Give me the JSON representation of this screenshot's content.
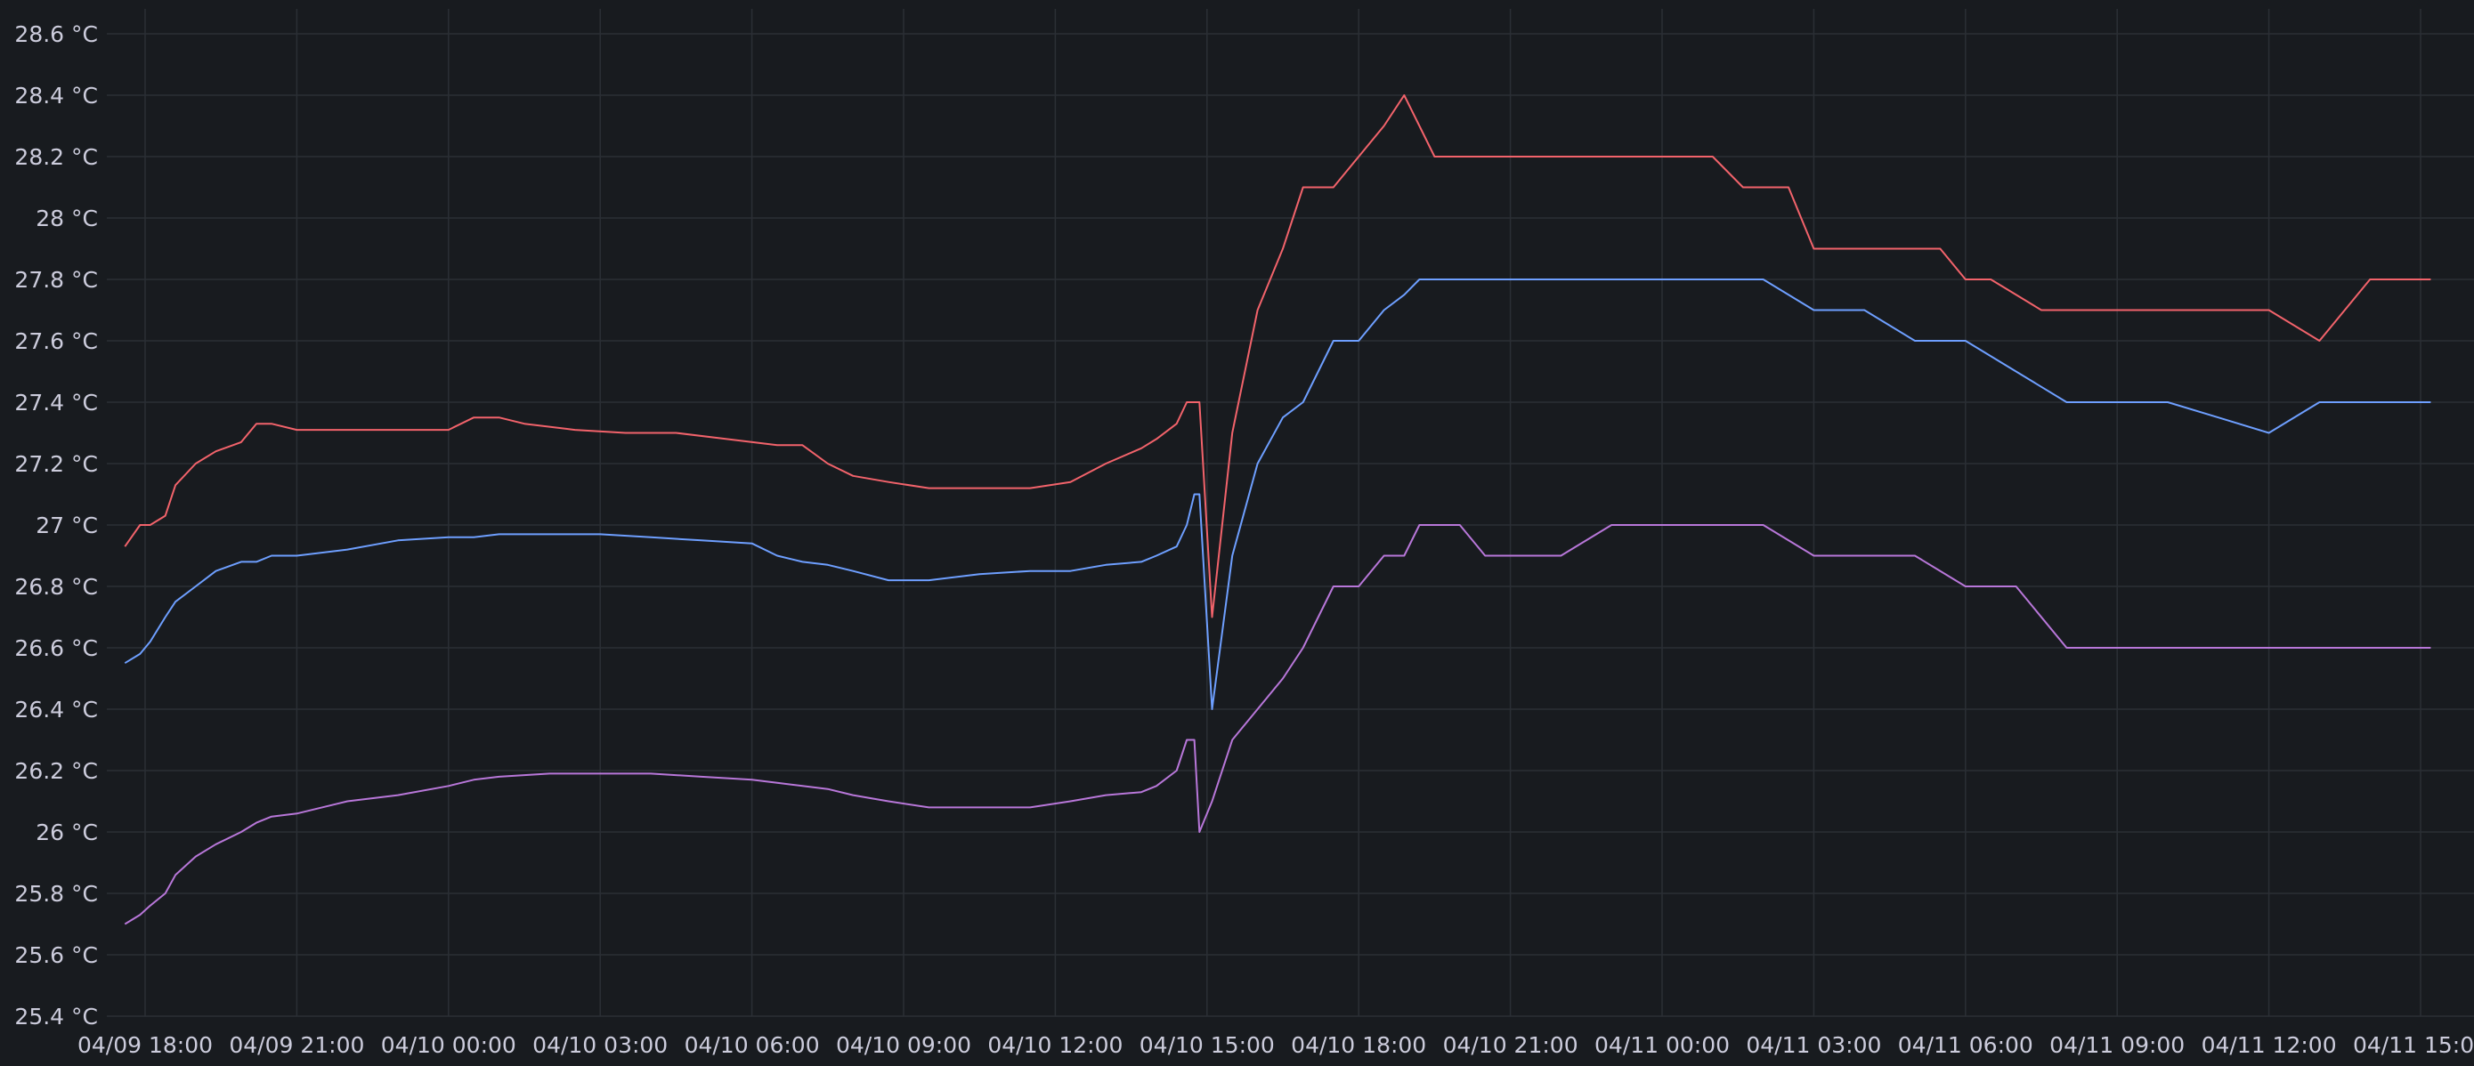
{
  "chart_data": {
    "type": "line",
    "title": "",
    "xlabel": "",
    "ylabel": "",
    "unit": "°C",
    "grid": true,
    "legend": "none",
    "ylim": [
      25.4,
      28.65
    ],
    "xlim": [
      "04/09 17:36",
      "04/11 15:12"
    ],
    "y_ticks": [
      "25.4 °C",
      "25.6 °C",
      "25.8 °C",
      "26 °C",
      "26.2 °C",
      "26.4 °C",
      "26.6 °C",
      "26.8 °C",
      "27 °C",
      "27.2 °C",
      "27.4 °C",
      "27.6 °C",
      "27.8 °C",
      "28 °C",
      "28.2 °C",
      "28.4 °C",
      "28.6 °C"
    ],
    "y_tick_values": [
      25.4,
      25.6,
      25.8,
      26.0,
      26.2,
      26.4,
      26.6,
      26.8,
      27.0,
      27.2,
      27.4,
      27.6,
      27.8,
      28.0,
      28.2,
      28.4,
      28.6
    ],
    "x_ticks": [
      "04/09 18:00",
      "04/09 21:00",
      "04/10 00:00",
      "04/10 03:00",
      "04/10 06:00",
      "04/10 09:00",
      "04/10 12:00",
      "04/10 15:00",
      "04/10 18:00",
      "04/10 21:00",
      "04/11 00:00",
      "04/11 03:00",
      "04/11 06:00",
      "04/11 09:00",
      "04/11 12:00",
      "04/11 15:00"
    ],
    "x_tick_values": [
      "04/09 18:00",
      "04/09 21:00",
      "04/10 00:00",
      "04/10 03:00",
      "04/10 06:00",
      "04/10 09:00",
      "04/10 12:00",
      "04/10 15:00",
      "04/10 18:00",
      "04/10 21:00",
      "04/11 00:00",
      "04/11 03:00",
      "04/11 06:00",
      "04/11 09:00",
      "04/11 12:00",
      "04/11 15:00"
    ],
    "series": [
      {
        "color": "#f2636b",
        "x": [
          "04/09 17:36",
          "04/09 17:54",
          "04/09 18:06",
          "04/09 18:24",
          "04/09 18:36",
          "04/09 19:00",
          "04/09 19:24",
          "04/09 19:54",
          "04/09 20:12",
          "04/09 20:30",
          "04/09 21:00",
          "04/09 22:00",
          "04/09 23:00",
          "04/10 00:00",
          "04/10 00:30",
          "04/10 01:00",
          "04/10 01:30",
          "04/10 02:30",
          "04/10 03:30",
          "04/10 04:30",
          "04/10 05:30",
          "04/10 06:30",
          "04/10 07:00",
          "04/10 07:30",
          "04/10 08:00",
          "04/10 08:42",
          "04/10 09:30",
          "04/10 10:30",
          "04/10 11:30",
          "04/10 12:18",
          "04/10 13:00",
          "04/10 13:42",
          "04/10 14:00",
          "04/10 14:24",
          "04/10 14:36",
          "04/10 14:45",
          "04/10 14:51",
          "04/10 15:06",
          "04/10 15:30",
          "04/10 16:00",
          "04/10 16:30",
          "04/10 16:54",
          "04/10 17:30",
          "04/10 18:00",
          "04/10 18:30",
          "04/10 18:54",
          "04/10 19:12",
          "04/10 19:30",
          "04/10 20:00",
          "04/10 21:00",
          "04/10 22:00",
          "04/10 23:00",
          "04/11 00:00",
          "04/11 01:00",
          "04/11 01:36",
          "04/11 02:00",
          "04/11 02:30",
          "04/11 03:00",
          "04/11 03:30",
          "04/11 04:30",
          "04/11 05:30",
          "04/11 06:00",
          "04/11 06:30",
          "04/11 07:30",
          "04/11 08:30",
          "04/11 09:30",
          "04/11 10:30",
          "04/11 11:30",
          "04/11 12:00",
          "04/11 13:00",
          "04/11 14:00",
          "04/11 15:12"
        ],
        "y": [
          26.93,
          27.0,
          27.0,
          27.03,
          27.13,
          27.2,
          27.24,
          27.27,
          27.33,
          27.33,
          27.31,
          27.31,
          27.31,
          27.31,
          27.35,
          27.35,
          27.33,
          27.31,
          27.3,
          27.3,
          27.28,
          27.26,
          27.26,
          27.2,
          27.16,
          27.14,
          27.12,
          27.12,
          27.12,
          27.14,
          27.2,
          27.25,
          27.28,
          27.33,
          27.4,
          27.4,
          27.4,
          26.7,
          27.3,
          27.7,
          27.9,
          28.1,
          28.1,
          28.2,
          28.3,
          28.4,
          28.3,
          28.2,
          28.2,
          28.2,
          28.2,
          28.2,
          28.2,
          28.2,
          28.1,
          28.1,
          28.1,
          27.9,
          27.9,
          27.9,
          27.9,
          27.8,
          27.8,
          27.7,
          27.7,
          27.7,
          27.7,
          27.7,
          27.7,
          27.6,
          27.8,
          27.8
        ]
      },
      {
        "color": "#6e9fff",
        "x": [
          "04/09 17:36",
          "04/09 17:54",
          "04/09 18:06",
          "04/09 18:24",
          "04/09 18:36",
          "04/09 19:00",
          "04/09 19:24",
          "04/09 19:54",
          "04/09 20:12",
          "04/09 20:30",
          "04/09 21:00",
          "04/09 22:00",
          "04/09 23:00",
          "04/10 00:00",
          "04/10 00:30",
          "04/10 01:00",
          "04/10 02:00",
          "04/10 03:00",
          "04/10 04:00",
          "04/10 05:00",
          "04/10 06:00",
          "04/10 06:30",
          "04/10 07:00",
          "04/10 07:30",
          "04/10 08:00",
          "04/10 08:42",
          "04/10 09:30",
          "04/10 10:30",
          "04/10 11:30",
          "04/10 12:18",
          "04/10 13:00",
          "04/10 13:42",
          "04/10 14:00",
          "04/10 14:24",
          "04/10 14:36",
          "04/10 14:45",
          "04/10 14:51",
          "04/10 15:06",
          "04/10 15:30",
          "04/10 16:00",
          "04/10 16:30",
          "04/10 16:54",
          "04/10 17:30",
          "04/10 18:00",
          "04/10 18:30",
          "04/10 18:54",
          "04/10 19:12",
          "04/10 19:30",
          "04/10 20:00",
          "04/10 21:00",
          "04/10 22:00",
          "04/10 23:00",
          "04/11 00:00",
          "04/11 01:00",
          "04/11 02:00",
          "04/11 03:00",
          "04/11 04:00",
          "04/11 05:00",
          "04/11 06:00",
          "04/11 07:00",
          "04/11 08:00",
          "04/11 09:00",
          "04/11 10:00",
          "04/11 11:00",
          "04/11 12:00",
          "04/11 13:00",
          "04/11 14:00",
          "04/11 15:12"
        ],
        "y": [
          26.55,
          26.58,
          26.62,
          26.7,
          26.75,
          26.8,
          26.85,
          26.88,
          26.88,
          26.9,
          26.9,
          26.92,
          26.95,
          26.96,
          26.96,
          26.97,
          26.97,
          26.97,
          26.96,
          26.95,
          26.94,
          26.9,
          26.88,
          26.87,
          26.85,
          26.82,
          26.82,
          26.84,
          26.85,
          26.85,
          26.87,
          26.88,
          26.9,
          26.93,
          27.0,
          27.1,
          27.1,
          26.4,
          26.9,
          27.2,
          27.35,
          27.4,
          27.6,
          27.6,
          27.7,
          27.75,
          27.8,
          27.8,
          27.8,
          27.8,
          27.8,
          27.8,
          27.8,
          27.8,
          27.8,
          27.7,
          27.7,
          27.6,
          27.6,
          27.5,
          27.4,
          27.4,
          27.4,
          27.35,
          27.3,
          27.4,
          27.4,
          27.4
        ]
      },
      {
        "color": "#b877d9",
        "x": [
          "04/09 17:36",
          "04/09 17:54",
          "04/09 18:06",
          "04/09 18:24",
          "04/09 18:36",
          "04/09 19:00",
          "04/09 19:24",
          "04/09 19:54",
          "04/09 20:12",
          "04/09 20:30",
          "04/09 21:00",
          "04/09 22:00",
          "04/09 23:00",
          "04/10 00:00",
          "04/10 00:30",
          "04/10 01:00",
          "04/10 02:00",
          "04/10 03:00",
          "04/10 04:00",
          "04/10 05:00",
          "04/10 06:00",
          "04/10 06:30",
          "04/10 07:00",
          "04/10 07:30",
          "04/10 08:00",
          "04/10 08:42",
          "04/10 09:30",
          "04/10 10:30",
          "04/10 11:30",
          "04/10 12:18",
          "04/10 13:00",
          "04/10 13:42",
          "04/10 14:00",
          "04/10 14:24",
          "04/10 14:36",
          "04/10 14:45",
          "04/10 14:51",
          "04/10 15:06",
          "04/10 15:30",
          "04/10 16:00",
          "04/10 16:30",
          "04/10 16:54",
          "04/10 17:30",
          "04/10 18:00",
          "04/10 18:30",
          "04/10 18:54",
          "04/10 19:12",
          "04/10 19:30",
          "04/10 20:00",
          "04/10 20:30",
          "04/10 21:00",
          "04/10 22:00",
          "04/10 23:00",
          "04/11 00:00",
          "04/11 01:00",
          "04/11 02:00",
          "04/11 03:00",
          "04/11 04:00",
          "04/11 05:00",
          "04/11 06:00",
          "04/11 07:00",
          "04/11 08:00",
          "04/11 09:00",
          "04/11 10:00",
          "04/11 11:00",
          "04/11 12:00",
          "04/11 13:00",
          "04/11 14:00",
          "04/11 15:12"
        ],
        "y": [
          25.7,
          25.73,
          25.76,
          25.8,
          25.86,
          25.92,
          25.96,
          26.0,
          26.03,
          26.05,
          26.06,
          26.1,
          26.12,
          26.15,
          26.17,
          26.18,
          26.19,
          26.19,
          26.19,
          26.18,
          26.17,
          26.16,
          26.15,
          26.14,
          26.12,
          26.1,
          26.08,
          26.08,
          26.08,
          26.1,
          26.12,
          26.13,
          26.15,
          26.2,
          26.3,
          26.3,
          26.0,
          26.1,
          26.3,
          26.4,
          26.5,
          26.6,
          26.8,
          26.8,
          26.9,
          26.9,
          27.0,
          27.0,
          27.0,
          26.9,
          26.9,
          26.9,
          27.0,
          27.0,
          27.0,
          27.0,
          26.9,
          26.9,
          26.9,
          26.8,
          26.8,
          26.6,
          26.6,
          26.6,
          26.6,
          26.6,
          26.6,
          26.6,
          26.6
        ]
      }
    ]
  }
}
